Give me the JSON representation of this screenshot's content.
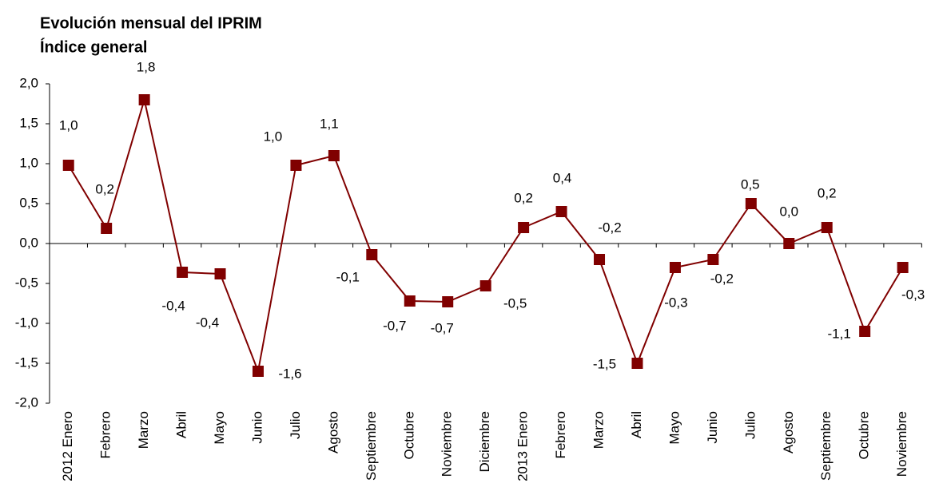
{
  "chart_data": {
    "type": "line",
    "title": "Evolución mensual del IPRIM",
    "subtitle": "Índice general",
    "categories": [
      "2012 Enero",
      "Febrero",
      "Marzo",
      "Abril",
      "Mayo",
      "Junio",
      "Julio",
      "Agosto",
      "Septiembre",
      "Octubre",
      "Noviembre",
      "Diciembre",
      "2013 Enero",
      "Febrero",
      "Marzo",
      "Abril",
      "Mayo",
      "Junio",
      "Julio",
      "Agosto",
      "Septiembre",
      "Octubre",
      "Noviembre"
    ],
    "series": [
      {
        "name": "IPRIM",
        "color": "#800000",
        "values": [
          0.98,
          0.19,
          1.8,
          -0.36,
          -0.38,
          -1.6,
          0.98,
          1.1,
          -0.14,
          -0.72,
          -0.73,
          -0.53,
          0.2,
          0.4,
          -0.2,
          -1.5,
          -0.3,
          -0.2,
          0.5,
          0.0,
          0.2,
          -1.1,
          -0.3
        ],
        "value_labels": [
          "1,0",
          "0,2",
          "1,8",
          "-0,4",
          "-0,4",
          "-1,6",
          "1,0",
          "1,1",
          "-0,1",
          "-0,7",
          "-0,7",
          "-0,5",
          "0,2",
          "0,4",
          "-0,2",
          "-1,5",
          "-0,3",
          "-0,2",
          "0,5",
          "0,0",
          "0,2",
          "-1,1",
          "-0,3"
        ]
      }
    ],
    "ylim": [
      -2.0,
      2.0
    ],
    "yticks": [
      {
        "value": -2.0,
        "label": "-2,0"
      },
      {
        "value": -1.5,
        "label": "-1,5"
      },
      {
        "value": -1.0,
        "label": "-1,0"
      },
      {
        "value": -0.5,
        "label": "-0,5"
      },
      {
        "value": 0.0,
        "label": "0,0"
      },
      {
        "value": 0.5,
        "label": "0,5"
      },
      {
        "value": 1.0,
        "label": "1,0"
      },
      {
        "value": 1.5,
        "label": "1,5"
      },
      {
        "value": 2.0,
        "label": "2,0"
      }
    ],
    "grid": false
  }
}
